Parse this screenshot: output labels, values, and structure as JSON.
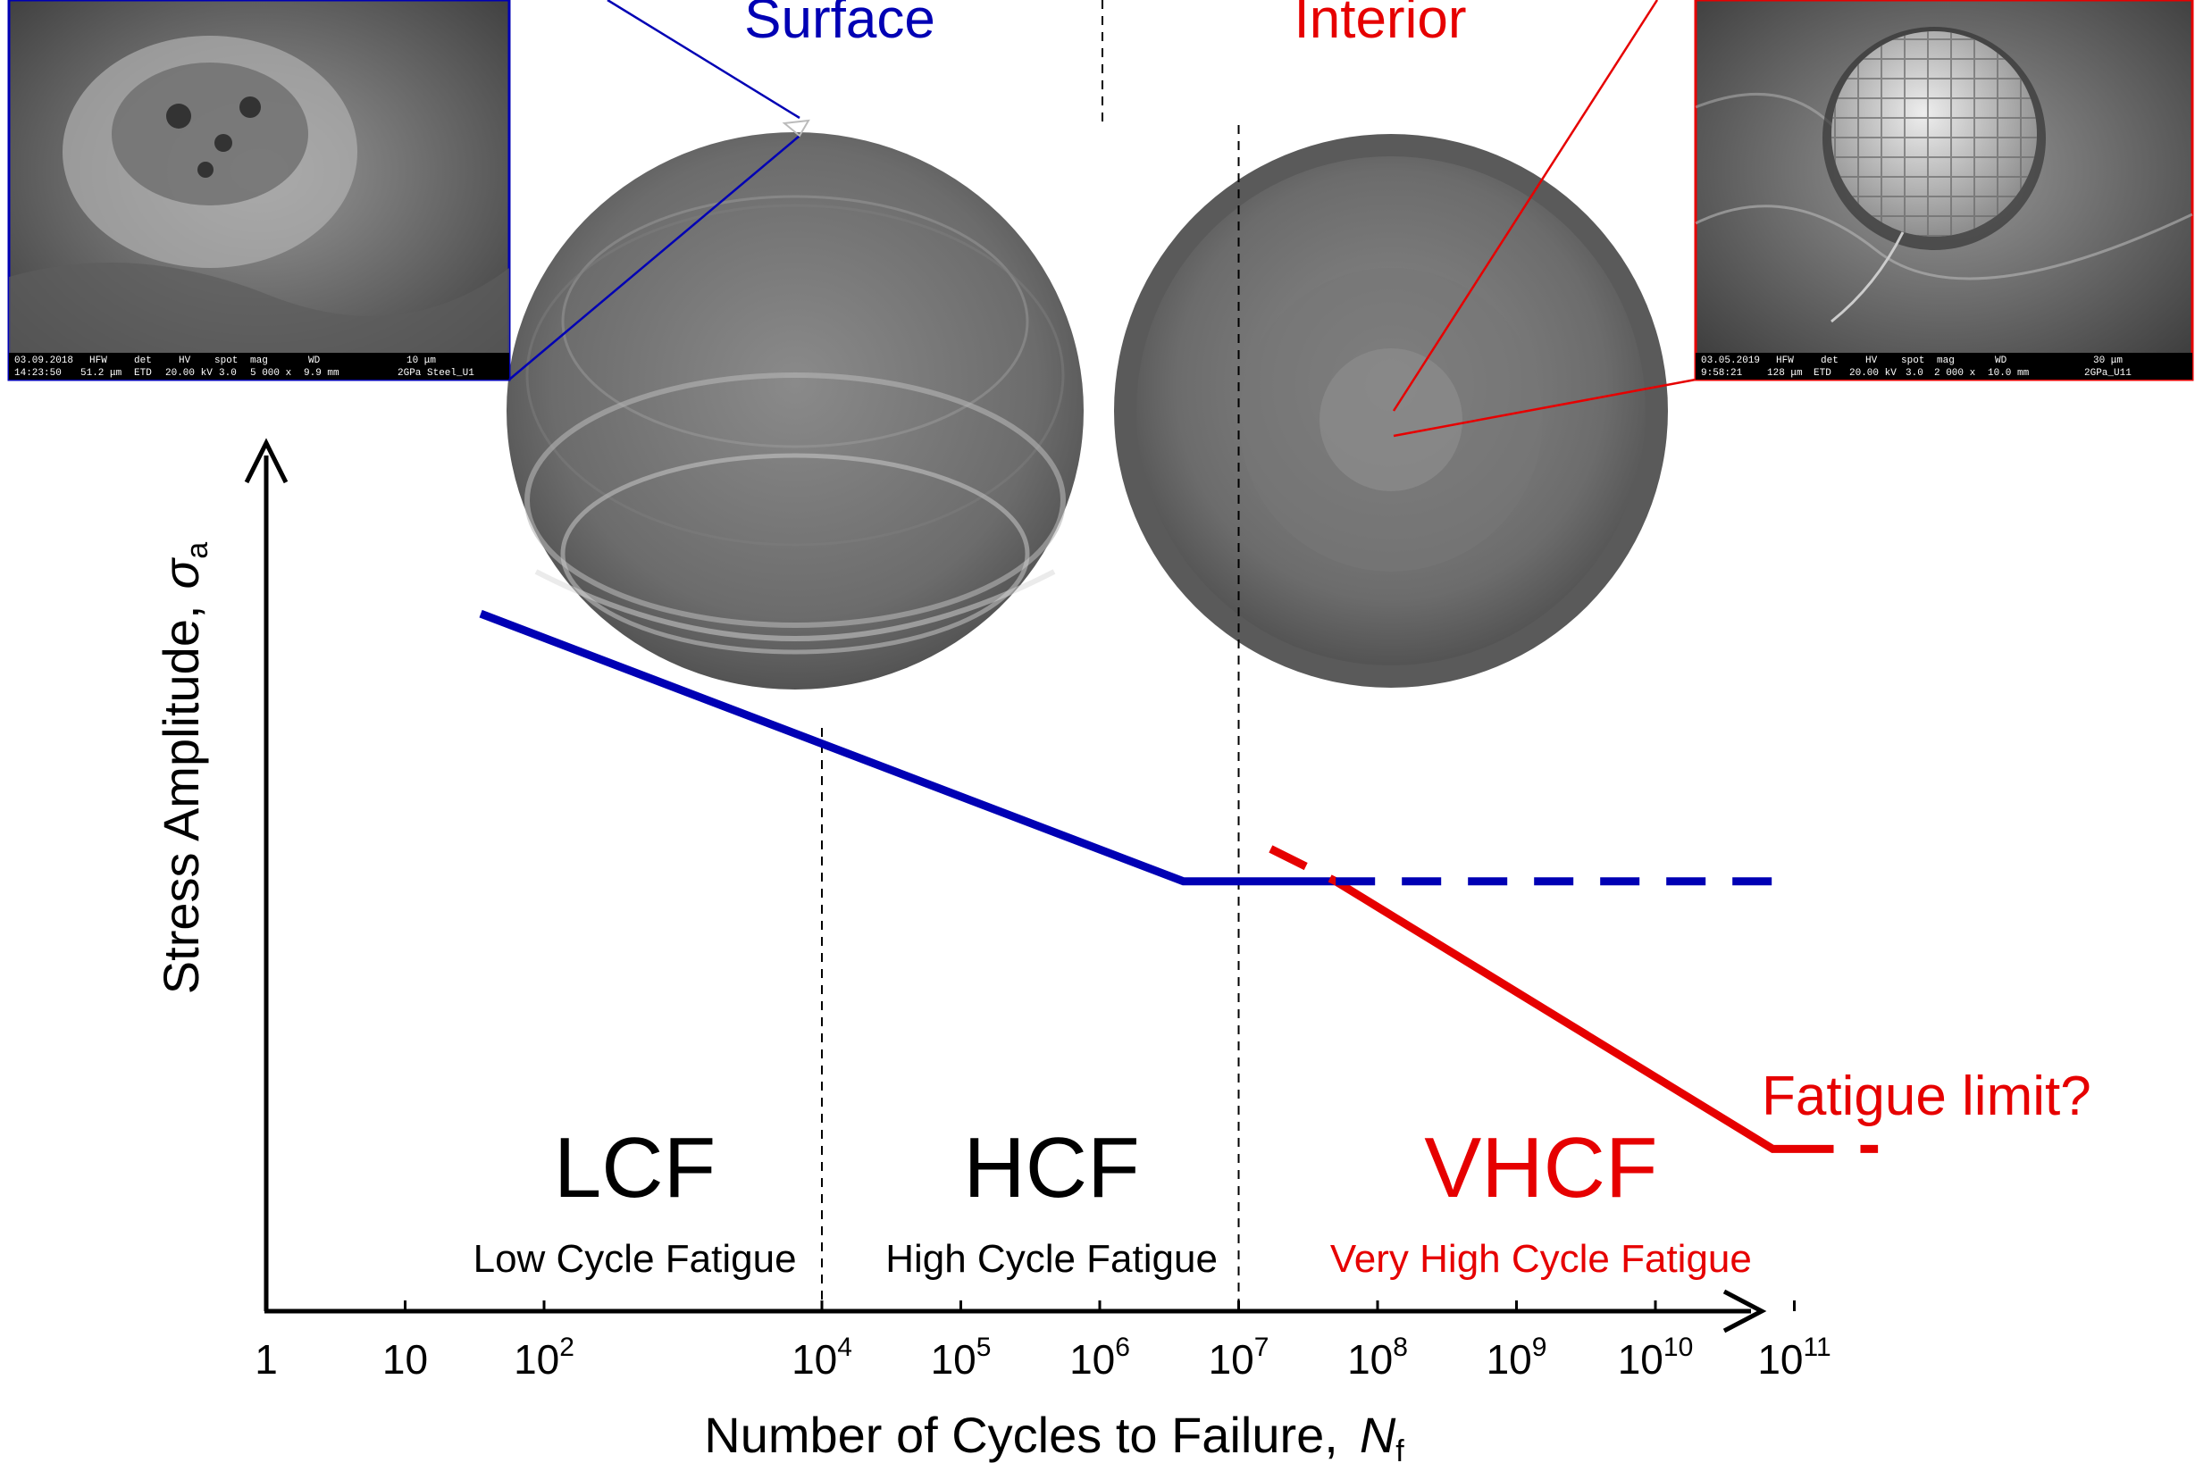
{
  "chart_data": {
    "type": "line",
    "x_scale": "log10",
    "xlim": [
      1,
      100000000000
    ],
    "xlabel": "Number of Cycles to Failure,",
    "xlabel_symbol": "N",
    "xlabel_symbol_sub": "f",
    "ylabel": "Stress Amplitude,",
    "ylabel_symbol": "σ",
    "ylabel_symbol_sub": "a",
    "x_ticks": [
      {
        "value": 1,
        "base": "1",
        "exp": ""
      },
      {
        "value": 10,
        "base": "10",
        "exp": ""
      },
      {
        "value": 100,
        "base": "10",
        "exp": "2"
      },
      {
        "value": 10000,
        "base": "10",
        "exp": "4"
      },
      {
        "value": 100000,
        "base": "10",
        "exp": "5"
      },
      {
        "value": 1000000,
        "base": "10",
        "exp": "6"
      },
      {
        "value": 10000000,
        "base": "10",
        "exp": "7"
      },
      {
        "value": 100000000,
        "base": "10",
        "exp": "8"
      },
      {
        "value": 1000000000,
        "base": "10",
        "exp": "9"
      },
      {
        "value": 10000000000,
        "base": "10",
        "exp": "10"
      },
      {
        "value": 100000000000,
        "base": "10",
        "exp": "11"
      }
    ],
    "region_boundaries": [
      10000,
      10000000
    ],
    "regions": [
      {
        "abbr": "LCF",
        "full": "Low Cycle Fatigue",
        "color": "#000000",
        "x_center": 450
      },
      {
        "abbr": "HCF",
        "full": "High Cycle Fatigue",
        "color": "#000000",
        "x_center": 450000
      },
      {
        "abbr": "VHCF",
        "full": "Very High Cycle Fatigue",
        "color": "#e60000",
        "x_center": 1500000000
      }
    ],
    "series": [
      {
        "name": "Surface",
        "color": "#0000b4",
        "solid": [
          [
            35,
            0.86
          ],
          [
            4000000,
            0.53
          ],
          [
            50000000,
            0.53
          ]
        ],
        "dashed": [
          [
            50000000,
            0.53
          ],
          [
            100000000000,
            0.53
          ]
        ]
      },
      {
        "name": "Interior",
        "color": "#e60000",
        "solid": [
          [
            50000000,
            0.53
          ],
          [
            70000000000,
            0.2
          ],
          [
            100000000000,
            0.2
          ]
        ],
        "dashed_before": [
          [
            17000000,
            0.57
          ],
          [
            50000000,
            0.53
          ]
        ],
        "dashed_after": [
          [
            100000000000,
            0.2
          ],
          [
            400000000000,
            0.2
          ]
        ]
      }
    ],
    "annotations": [
      {
        "text": "Fatigue limit?",
        "color": "#e60000"
      }
    ]
  },
  "images": {
    "surface_sem_meta": [
      "03.09.2018",
      "HFW",
      "det",
      "HV",
      "spot",
      "mag",
      "WD",
      "10 μm",
      "14:23:50",
      "51.2 μm",
      "ETD",
      "20.00 kV",
      "3.0",
      "5 000 x",
      "9.9 mm",
      "2GPa Steel_U1"
    ],
    "interior_sem_meta": [
      "03.05.2019",
      "HFW",
      "det",
      "HV",
      "spot",
      "mag",
      "WD",
      "30 μm",
      "9:58:21",
      "128 μm",
      "ETD",
      "20.00 kV",
      "3.0",
      "2 000 x",
      "10.0 mm",
      "2GPa_U11"
    ]
  },
  "colors": {
    "surface": "#0000b4",
    "interior": "#e60000",
    "axis": "#000000"
  }
}
